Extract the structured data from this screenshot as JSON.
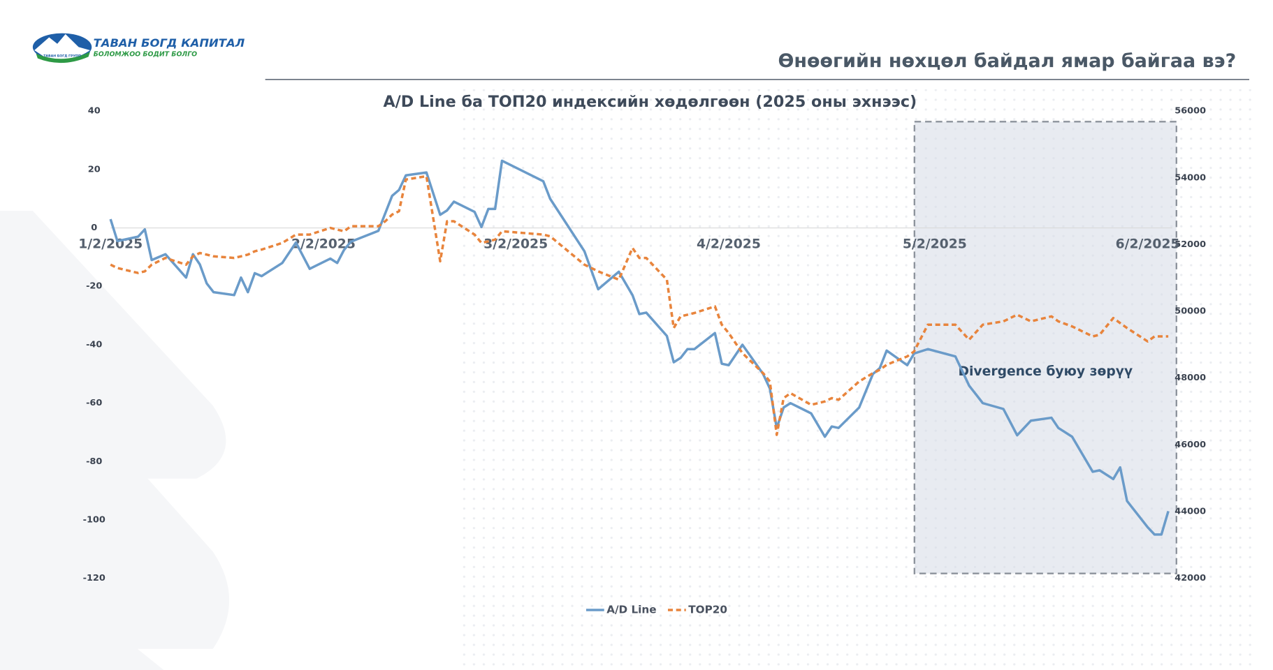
{
  "header": {
    "title": "Өнөөгийн нөхцөл байдал ямар байгаа вэ?"
  },
  "logo": {
    "name": "ТАВАН БОГД КАПИТАЛ",
    "slogan": "БОЛОМЖОО БОДИТ БОЛГО",
    "group": "ТАВАН БОГД ГРУПП"
  },
  "chart_data": {
    "type": "line",
    "title": "A/D Line ба ТОП20 индексийн хөдөлгөөн (2025 оны эхнээс)",
    "annotation": "Divergence буюу зөрүү",
    "highlight": [
      "4/30/2025",
      "6/5/2025"
    ],
    "x": [
      "1/2/2025",
      "1/3/2025",
      "1/6/2025",
      "1/7/2025",
      "1/8/2025",
      "1/10/2025",
      "1/13/2025",
      "1/14/2025",
      "1/15/2025",
      "1/16/2025",
      "1/17/2025",
      "1/20/2025",
      "1/21/2025",
      "1/22/2025",
      "1/23/2025",
      "1/24/2025",
      "1/27/2025",
      "1/29/2025",
      "1/31/2025",
      "2/3/2025",
      "2/4/2025",
      "2/5/2025",
      "2/6/2025",
      "2/10/2025",
      "2/11/2025",
      "2/12/2025",
      "2/13/2025",
      "2/14/2025",
      "2/17/2025",
      "2/19/2025",
      "2/20/2025",
      "2/21/2025",
      "2/24/2025",
      "2/25/2025",
      "2/26/2025",
      "2/27/2025",
      "2/28/2025",
      "3/6/2025",
      "3/7/2025",
      "3/12/2025",
      "3/14/2025",
      "3/17/2025",
      "3/19/2025",
      "3/20/2025",
      "3/21/2025",
      "3/24/2025",
      "3/25/2025",
      "3/26/2025",
      "3/27/2025",
      "3/28/2025",
      "3/31/2025",
      "4/1/2025",
      "4/2/2025",
      "4/4/2025",
      "4/7/2025",
      "4/8/2025",
      "4/9/2025",
      "4/10/2025",
      "4/11/2025",
      "4/14/2025",
      "4/16/2025",
      "4/17/2025",
      "4/18/2025",
      "4/21/2025",
      "4/23/2025",
      "4/24/2025",
      "4/25/2025",
      "4/28/2025",
      "4/29/2025",
      "5/1/2025",
      "5/5/2025",
      "5/7/2025",
      "5/9/2025",
      "5/12/2025",
      "5/14/2025",
      "5/16/2025",
      "5/19/2025",
      "5/20/2025",
      "5/22/2025",
      "5/25/2025",
      "5/26/2025",
      "5/28/2025",
      "5/29/2025",
      "5/30/2025",
      "6/2/2025",
      "6/3/2025",
      "6/4/2025",
      "6/5/2025"
    ],
    "series": [
      {
        "name": "A/D Line",
        "color": "#6a9bc9",
        "axis": "y",
        "values": [
          3,
          -4.5,
          -3,
          -0.5,
          -11,
          -9,
          -17,
          -9,
          -12.5,
          -19,
          -22,
          -23,
          -17,
          -22,
          -15.5,
          -16.5,
          -12,
          -5,
          -14,
          -10.5,
          -12,
          -7.5,
          -4.7,
          -1,
          5,
          11,
          13,
          18,
          19,
          4.5,
          6,
          9,
          5.5,
          0.3,
          6.5,
          6.5,
          23,
          16,
          10,
          -8,
          -21,
          -15,
          -23,
          -29.5,
          -29,
          -37,
          -46,
          -44.5,
          -41.5,
          -41.5,
          -36,
          -46.5,
          -47,
          -40,
          -50,
          -55,
          -68.5,
          -61.5,
          -60,
          -63.5,
          -71.5,
          -68,
          -68.5,
          -61.5,
          -50,
          -48,
          -42,
          -47,
          -43,
          -41.5,
          -44,
          -54,
          -60,
          -62,
          -71,
          -66,
          -65,
          -68.5,
          -71.5,
          -83.5,
          -83,
          -86,
          -82,
          -93.5,
          -102.5,
          -105,
          -105,
          -97
        ]
      },
      {
        "name": "TOP20",
        "color": "#e8843c",
        "axis": "y2",
        "dash": true,
        "values": [
          51400,
          51300,
          51150,
          51200,
          51400,
          51600,
          51400,
          51650,
          51750,
          51700,
          51650,
          51600,
          51650,
          51700,
          51800,
          51850,
          52050,
          52300,
          52300,
          52500,
          52450,
          52400,
          52550,
          52550,
          52700,
          52900,
          53000,
          53950,
          54050,
          51500,
          52700,
          52700,
          52300,
          52050,
          52100,
          52150,
          52400,
          52300,
          52250,
          51400,
          51200,
          50950,
          51900,
          51600,
          51600,
          50950,
          49500,
          49850,
          49900,
          49950,
          50150,
          49600,
          49350,
          48750,
          48150,
          47900,
          46300,
          47400,
          47550,
          47200,
          47300,
          47400,
          47350,
          47900,
          48150,
          48250,
          48400,
          48650,
          48800,
          49600,
          49600,
          49150,
          49600,
          49700,
          49900,
          49700,
          49850,
          49700,
          49550,
          49250,
          49300,
          49800,
          49650,
          49500,
          49100,
          49250,
          49250,
          49250
        ]
      }
    ],
    "xticks": [
      "1/2/2025",
      "2/2/2025",
      "3/2/2025",
      "4/2/2025",
      "5/2/2025",
      "6/2/2025"
    ],
    "ylim": [
      -120,
      40
    ],
    "yticks": [
      40,
      20,
      0,
      -20,
      -40,
      -60,
      -80,
      -100,
      -120
    ],
    "y2lim": [
      42000,
      56000
    ],
    "y2ticks": [
      56000,
      54000,
      52000,
      50000,
      48000,
      46000,
      44000,
      42000
    ],
    "grid": false,
    "legend": "bottom"
  }
}
